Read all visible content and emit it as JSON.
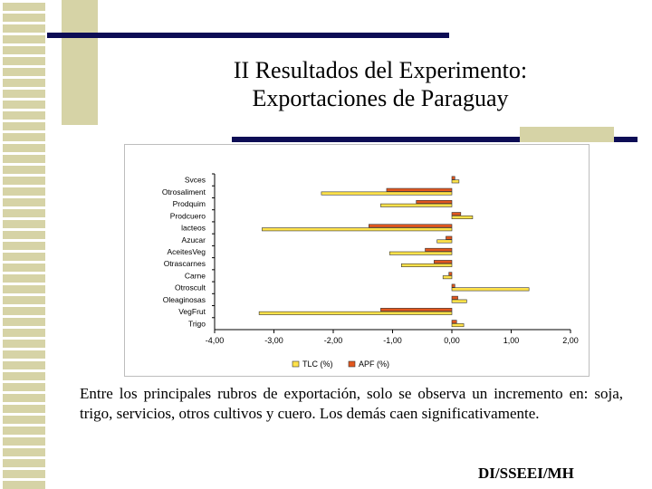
{
  "slide": {
    "title_line1": "II Resultados del Experimento:",
    "title_line2": "Exportaciones de Paraguay",
    "body": "Entre los principales rubros de exportación, solo se observa un incremento en: soja, trigo, servicios, otros cultivos y cuero. Los demás caen significativamente.",
    "footer": "DI/SSEEI/MH"
  },
  "colors": {
    "navy": "#0d0d55",
    "khaki": "#d6d3a6",
    "tlc": "#ffe24a",
    "apf": "#e2571e"
  },
  "chart_data": {
    "type": "bar",
    "orientation": "horizontal",
    "categories": [
      "Svces",
      "Otrosaliment",
      "Prodquim",
      "Prodcuero",
      "lacteos",
      "Azucar",
      "AceitesVeg",
      "Otrascarnes",
      "Carne",
      "Otroscult",
      "Oleaginosas",
      "VegFrut",
      "Trigo"
    ],
    "series": [
      {
        "name": "TLC (%)",
        "values": [
          0.12,
          -2.2,
          -1.2,
          0.35,
          -3.2,
          -0.25,
          -1.05,
          -0.85,
          -0.15,
          1.3,
          0.25,
          -3.25,
          0.2
        ]
      },
      {
        "name": "APF (%)",
        "values": [
          0.05,
          -1.1,
          -0.6,
          0.15,
          -1.4,
          -0.1,
          -0.45,
          -0.3,
          -0.05,
          0.05,
          0.1,
          -1.2,
          0.08
        ]
      }
    ],
    "xticks": [
      "-4,00",
      "-3,00",
      "-2,00",
      "-1,00",
      "0,00",
      "1,00",
      "2,00"
    ],
    "xlim": [
      -4,
      2
    ],
    "grid": false,
    "legend_position": "bottom"
  }
}
